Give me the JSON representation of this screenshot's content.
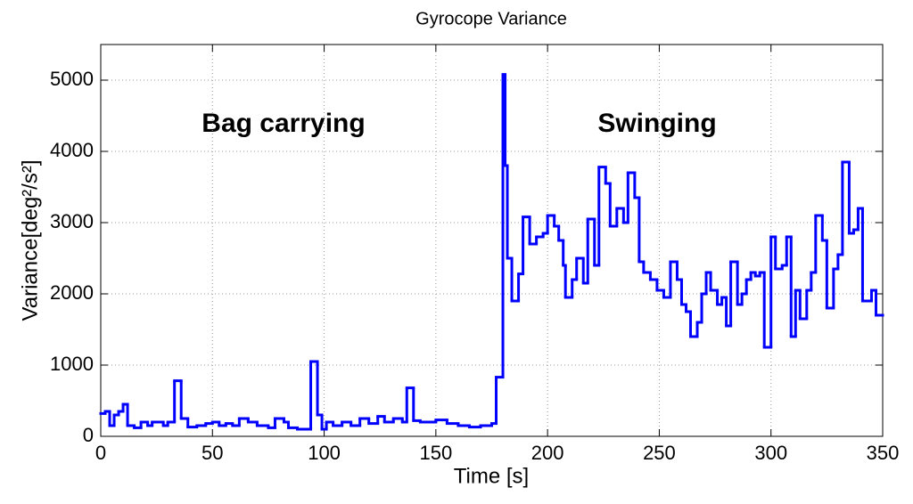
{
  "chart_data": {
    "type": "step",
    "title": "Gyrocope Variance",
    "xlabel": "Time [s]",
    "ylabel": "Variance[deg²/s²]",
    "annotations": [
      "Bag carrying",
      "Swinging"
    ],
    "color": "#0000ff",
    "grid": true,
    "xlim": [
      0,
      350
    ],
    "ylim": [
      0,
      5500
    ],
    "xticks": [
      0,
      50,
      100,
      150,
      200,
      250,
      300,
      350
    ],
    "yticks": [
      0,
      1000,
      2000,
      3000,
      4000,
      5000
    ],
    "series": [
      {
        "x": [
          0,
          2,
          4,
          6,
          8,
          10,
          12,
          15,
          18,
          21,
          23,
          28,
          30,
          33,
          36,
          39,
          43,
          47,
          50,
          53,
          56,
          59,
          62,
          66,
          70,
          75,
          78,
          82,
          84,
          88,
          94,
          97,
          99,
          101,
          104,
          108,
          112,
          116,
          120,
          124,
          127,
          131,
          135,
          137,
          140,
          143,
          150,
          155,
          160,
          165,
          170,
          175,
          177,
          180,
          181,
          182,
          184,
          187,
          189,
          192,
          195,
          198,
          200,
          203,
          205,
          207,
          208,
          211,
          213,
          216,
          218,
          221,
          223,
          226,
          228,
          231,
          234,
          236,
          239,
          241,
          243,
          246,
          249,
          252,
          255,
          258,
          260,
          262,
          264,
          267,
          269,
          271,
          273,
          276,
          278,
          280,
          282,
          285,
          287,
          289,
          291,
          293,
          295,
          297,
          300,
          302,
          305,
          307,
          309,
          311,
          313,
          316,
          318,
          320,
          323,
          325,
          328,
          330,
          332,
          335,
          337,
          339,
          341,
          343,
          345,
          347
        ],
        "values": [
          320,
          350,
          150,
          300,
          350,
          450,
          150,
          120,
          200,
          150,
          200,
          150,
          200,
          780,
          250,
          130,
          150,
          180,
          200,
          150,
          180,
          150,
          250,
          200,
          150,
          120,
          250,
          200,
          120,
          100,
          1050,
          300,
          100,
          200,
          150,
          200,
          150,
          250,
          180,
          280,
          200,
          250,
          200,
          680,
          220,
          200,
          230,
          180,
          150,
          130,
          150,
          180,
          830,
          5080,
          3800,
          2500,
          1900,
          2280,
          3080,
          2700,
          2800,
          2850,
          3100,
          2950,
          2750,
          2400,
          1950,
          2200,
          2500,
          2150,
          3050,
          2400,
          3780,
          3550,
          2950,
          3200,
          3000,
          3700,
          3350,
          2450,
          2300,
          2200,
          2050,
          1950,
          2450,
          2200,
          1850,
          1750,
          1400,
          1600,
          2000,
          2300,
          2050,
          1850,
          1950,
          1550,
          2450,
          1850,
          2000,
          2200,
          2300,
          2250,
          2300,
          1250,
          2800,
          2350,
          2400,
          2800,
          1400,
          2050,
          1650,
          2050,
          2300,
          3100,
          2750,
          1800,
          2350,
          2550,
          3850,
          2850,
          2900,
          3200,
          1900,
          1900,
          2050,
          1700
        ]
      }
    ]
  }
}
